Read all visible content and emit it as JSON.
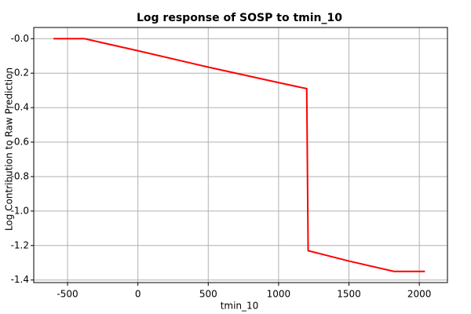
{
  "chart_data": {
    "type": "line",
    "title": "Log response of SOSP to tmin_10",
    "x_label": "tmin_10",
    "y_label": "Log Contribution to Raw Prediction",
    "x": [
      -600,
      -380,
      0,
      500,
      1000,
      1200,
      1210,
      1500,
      1820,
      2040
    ],
    "series": [
      {
        "name": "response",
        "color": "#ff0000",
        "values": [
          0,
          0,
          -0.07,
          -0.165,
          -0.255,
          -0.29,
          -1.23,
          -1.29,
          -1.35,
          -1.35
        ]
      }
    ],
    "xlim": [
      -740,
      2200
    ],
    "xticks": [
      -500,
      0,
      500,
      1000,
      1500,
      2000
    ],
    "ylim": [
      -1.415,
      0.065
    ],
    "yticks": [
      {
        "value": 0,
        "label": "-0.0"
      },
      -0.2,
      -0.4,
      -0.6,
      -0.8,
      {
        "value": -1,
        "label": "-1.0"
      },
      -1.2,
      -1.4
    ],
    "grid": true
  }
}
